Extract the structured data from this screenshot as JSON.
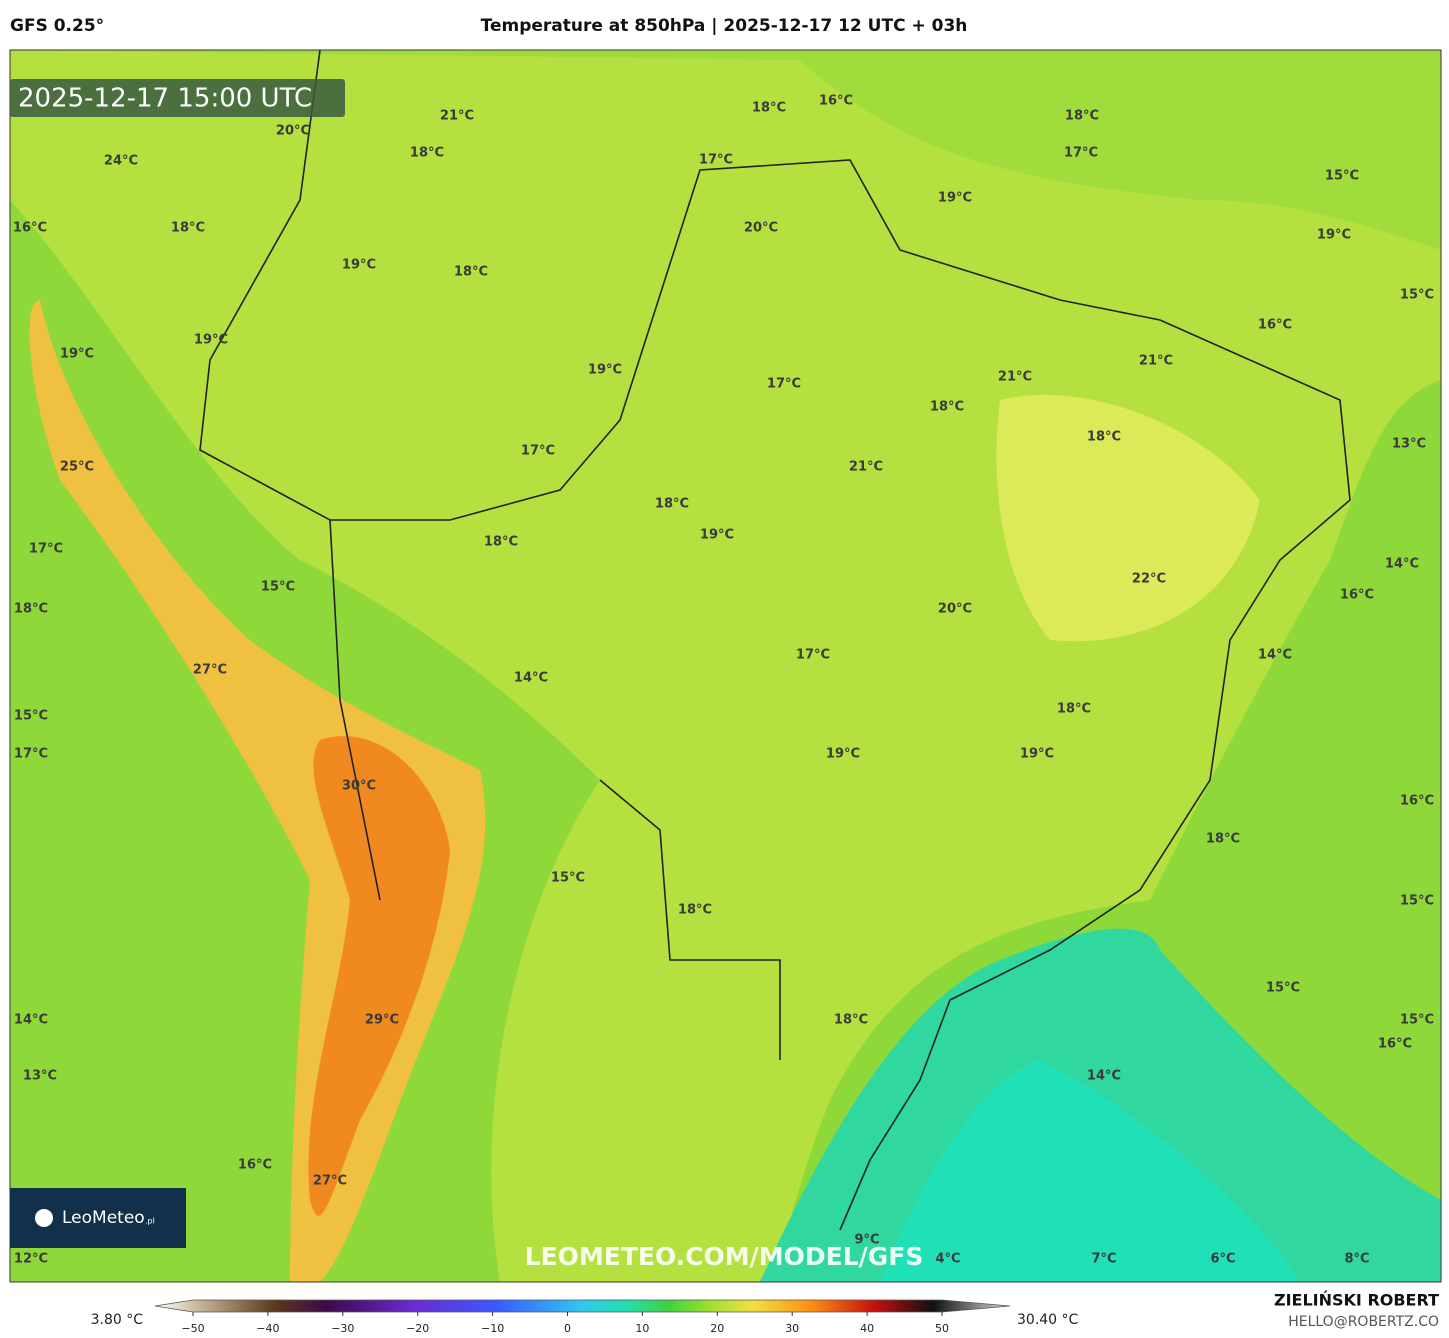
{
  "header": {
    "model": "GFS 0.25°",
    "title": "Temperature at 850hPa | 2025-12-17 12 UTC + 03h"
  },
  "map": {
    "timestamp": "2025-12-17 15:00 UTC",
    "watermark": "LEOMETEO.COM/MODEL/GFS",
    "logo": "LeoMeteo",
    "logo_suffix": ".pl",
    "labels": [
      "20°C",
      "21°C",
      "18°C",
      "24°C",
      "18°C",
      "16°C",
      "17°C",
      "18°C",
      "17°C",
      "15°C",
      "19°C",
      "20°C",
      "16°C",
      "18°C",
      "19°C",
      "19°C",
      "18°C",
      "15°C",
      "16°C",
      "19°C",
      "19°C",
      "21°C",
      "19°C",
      "21°C",
      "17°C",
      "18°C",
      "13°C",
      "18°C",
      "17°C",
      "21°C",
      "25°C",
      "18°C",
      "19°C",
      "18°C",
      "17°C",
      "22°C",
      "14°C",
      "16°C",
      "15°C",
      "18°C",
      "20°C",
      "27°C",
      "14°C",
      "17°C",
      "14°C",
      "18°C",
      "15°C",
      "19°C",
      "19°C",
      "17°C",
      "30°C",
      "16°C",
      "18°C",
      "15°C",
      "18°C",
      "15°C",
      "15°C",
      "29°C",
      "18°C",
      "14°C",
      "15°C",
      "16°C",
      "13°C",
      "14°C",
      "16°C",
      "27°C",
      "9°C",
      "4°C",
      "7°C",
      "6°C",
      "8°C",
      "12°C"
    ]
  },
  "colorbar": {
    "min_label": "3.80 °C",
    "max_label": "30.40 °C",
    "ticks": [
      {
        "value": -50,
        "label": "−50"
      },
      {
        "value": -40,
        "label": "−40"
      },
      {
        "value": -30,
        "label": "−30"
      },
      {
        "value": -20,
        "label": "−20"
      },
      {
        "value": -10,
        "label": "−10"
      },
      0,
      10,
      20,
      30,
      40,
      50
    ]
  },
  "footer": {
    "author": "ZIELIŃSKI ROBERT",
    "email": "HELLO@ROBERTZ.CO"
  }
}
